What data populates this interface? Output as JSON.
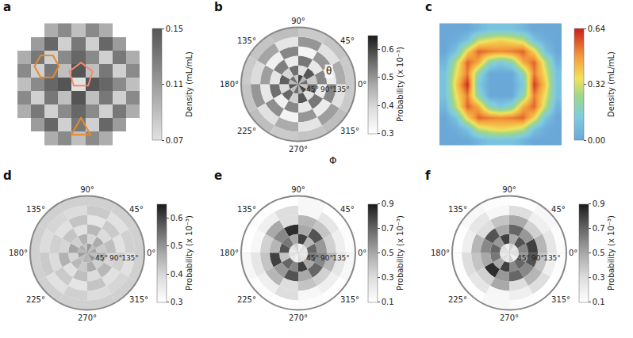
{
  "chart_data": [
    {
      "panel": "a",
      "type": "heatmap",
      "color": "gray",
      "tick_labels": false,
      "z": [
        [
          null,
          null,
          0.1,
          0.12,
          0.09,
          0.12,
          0.1,
          null,
          null
        ],
        [
          null,
          0.11,
          0.14,
          0.08,
          0.13,
          0.08,
          0.14,
          0.11,
          null
        ],
        [
          0.1,
          0.13,
          0.08,
          0.12,
          0.14,
          0.12,
          0.08,
          0.13,
          0.1
        ],
        [
          0.12,
          0.08,
          0.13,
          0.09,
          0.15,
          0.09,
          0.13,
          0.08,
          0.12
        ],
        [
          0.09,
          0.12,
          0.14,
          0.15,
          0.07,
          0.15,
          0.14,
          0.12,
          0.09
        ],
        [
          0.12,
          0.08,
          0.13,
          0.09,
          0.15,
          0.09,
          0.13,
          0.08,
          0.12
        ],
        [
          0.1,
          0.13,
          0.08,
          0.12,
          0.14,
          0.12,
          0.08,
          0.13,
          0.1
        ],
        [
          null,
          0.11,
          0.14,
          0.08,
          0.13,
          0.08,
          0.14,
          0.11,
          null
        ],
        [
          null,
          null,
          0.1,
          0.12,
          0.09,
          0.12,
          0.1,
          null,
          null
        ]
      ],
      "colorbar_title": "Density (mL/mL)",
      "zlim": [
        0.07,
        0.15
      ],
      "zticks": [
        0.07,
        0.11,
        0.15
      ]
    },
    {
      "panel": "b",
      "type": "polar_heatmap",
      "color": "black",
      "phi_bins": [
        0,
        30,
        60,
        90,
        120,
        150,
        180,
        210,
        240,
        270,
        300,
        330,
        360
      ],
      "theta_bins": [
        0,
        30,
        60,
        90,
        120,
        150,
        180
      ],
      "values": [
        [
          0.55,
          0.45,
          0.6,
          0.42,
          0.55,
          0.45,
          0.58,
          0.44,
          0.55,
          0.46,
          0.6,
          0.43
        ],
        [
          0.42,
          0.58,
          0.38,
          0.55,
          0.4,
          0.57,
          0.39,
          0.56,
          0.41,
          0.58,
          0.38,
          0.55
        ],
        [
          0.52,
          0.36,
          0.54,
          0.35,
          0.53,
          0.37,
          0.55,
          0.34,
          0.52,
          0.36,
          0.54,
          0.35
        ],
        [
          0.35,
          0.5,
          0.33,
          0.52,
          0.34,
          0.49,
          0.36,
          0.51,
          0.33,
          0.5,
          0.35,
          0.52
        ],
        [
          0.47,
          0.38,
          0.5,
          0.37,
          0.48,
          0.39,
          0.5,
          0.38,
          0.47,
          0.37,
          0.49,
          0.38
        ],
        [
          0.42,
          0.43,
          0.42,
          0.44,
          0.43,
          0.42,
          0.43,
          0.44,
          0.42,
          0.43,
          0.44,
          0.42
        ]
      ],
      "angular_ticks": [
        {
          "value": 0,
          "label": "0°"
        },
        {
          "value": 45,
          "label": "45°"
        },
        {
          "value": 90,
          "label": "90°"
        },
        {
          "value": 135,
          "label": "135°"
        },
        {
          "value": 180,
          "label": "180°"
        },
        {
          "value": 225,
          "label": "225°"
        },
        {
          "value": 270,
          "label": "270°"
        },
        {
          "value": 315,
          "label": "315°"
        }
      ],
      "rlim": [
        0,
        180
      ],
      "radial_ticks": [
        {
          "value": 45,
          "label": "45°"
        },
        {
          "value": 90,
          "label": "90°"
        },
        {
          "value": 135,
          "label": "135°"
        }
      ],
      "annotations": [
        "θ",
        "Φ"
      ],
      "colorbar_title": "Probability (x 10⁻³)",
      "zlim": [
        0.3,
        0.65
      ],
      "zticks": [
        0.3,
        0.4,
        0.5,
        0.6
      ]
    },
    {
      "panel": "c",
      "type": "heatmap",
      "color": "rainbow",
      "tick_labels": false,
      "z": [
        [
          0,
          0,
          0,
          0.05,
          0.1,
          0.1,
          0.1,
          0.05,
          0,
          0,
          0
        ],
        [
          0,
          0.02,
          0.1,
          0.3,
          0.35,
          0.38,
          0.35,
          0.3,
          0.1,
          0.02,
          0
        ],
        [
          0,
          0.1,
          0.38,
          0.55,
          0.52,
          0.5,
          0.52,
          0.55,
          0.38,
          0.1,
          0
        ],
        [
          0.05,
          0.3,
          0.55,
          0.45,
          0.2,
          0.12,
          0.2,
          0.45,
          0.55,
          0.3,
          0.05
        ],
        [
          0.1,
          0.35,
          0.52,
          0.2,
          0,
          0,
          0,
          0.2,
          0.52,
          0.35,
          0.1
        ],
        [
          0.1,
          0.4,
          0.62,
          0.12,
          0,
          0,
          0,
          0.12,
          0.6,
          0.4,
          0.1
        ],
        [
          0.1,
          0.35,
          0.52,
          0.2,
          0,
          0,
          0,
          0.2,
          0.52,
          0.35,
          0.1
        ],
        [
          0.05,
          0.3,
          0.55,
          0.45,
          0.2,
          0.12,
          0.2,
          0.45,
          0.55,
          0.3,
          0.05
        ],
        [
          0,
          0.1,
          0.38,
          0.55,
          0.52,
          0.5,
          0.52,
          0.55,
          0.38,
          0.1,
          0
        ],
        [
          0,
          0.02,
          0.1,
          0.3,
          0.35,
          0.38,
          0.35,
          0.3,
          0.1,
          0.02,
          0
        ],
        [
          0,
          0,
          0,
          0.05,
          0.1,
          0.1,
          0.1,
          0.05,
          0,
          0,
          0
        ]
      ],
      "colorbar_title": "Density (mL/mL)",
      "zlim": [
        0,
        0.64
      ],
      "zticks": [
        {
          "value": 0,
          "label": "0.00"
        },
        0.32,
        0.64
      ]
    },
    {
      "panel": "d",
      "type": "polar_heatmap",
      "color": "black",
      "phi_bins": [
        0,
        30,
        60,
        90,
        120,
        150,
        180,
        210,
        240,
        270,
        300,
        330,
        360
      ],
      "theta_bins": [
        0,
        30,
        60,
        90,
        120,
        150,
        180
      ],
      "values": [
        [
          0.48,
          0.44,
          0.5,
          0.43,
          0.47,
          0.45,
          0.49,
          0.44,
          0.46,
          0.45,
          0.5,
          0.44
        ],
        [
          0.42,
          0.47,
          0.4,
          0.46,
          0.41,
          0.48,
          0.4,
          0.45,
          0.42,
          0.47,
          0.41,
          0.46
        ],
        [
          0.44,
          0.39,
          0.45,
          0.38,
          0.43,
          0.4,
          0.46,
          0.38,
          0.44,
          0.39,
          0.45,
          0.4
        ],
        [
          0.38,
          0.42,
          0.37,
          0.43,
          0.38,
          0.41,
          0.39,
          0.42,
          0.37,
          0.43,
          0.38,
          0.41
        ],
        [
          0.41,
          0.38,
          0.42,
          0.39,
          0.4,
          0.39,
          0.42,
          0.38,
          0.41,
          0.39,
          0.4,
          0.38
        ],
        [
          0.41,
          0.41,
          0.41,
          0.41,
          0.41,
          0.41,
          0.41,
          0.41,
          0.41,
          0.41,
          0.41,
          0.41
        ]
      ],
      "angular_ticks": [
        {
          "value": 0,
          "label": "0°"
        },
        {
          "value": 45,
          "label": "45°"
        },
        {
          "value": 90,
          "label": "90°"
        },
        {
          "value": 135,
          "label": "135°"
        },
        {
          "value": 180,
          "label": "180°"
        },
        {
          "value": 225,
          "label": "225°"
        },
        {
          "value": 270,
          "label": "270°"
        },
        {
          "value": 315,
          "label": "315°"
        }
      ],
      "rlim": [
        0,
        180
      ],
      "radial_ticks": [
        {
          "value": 45,
          "label": "45°"
        },
        {
          "value": 90,
          "label": "90°"
        },
        {
          "value": 135,
          "label": "135°"
        }
      ],
      "colorbar_title": "Probability (x 10⁻³)",
      "zlim": [
        0.3,
        0.65
      ],
      "zticks": [
        0.3,
        0.4,
        0.5,
        0.6
      ]
    },
    {
      "panel": "e",
      "type": "polar_heatmap",
      "color": "black",
      "phi_bins": [
        0,
        30,
        60,
        90,
        120,
        150,
        180,
        210,
        240,
        270,
        300,
        330,
        360
      ],
      "theta_bins": [
        0,
        30,
        60,
        90,
        120,
        150,
        180
      ],
      "values": [
        [
          0.25,
          0.3,
          0.2,
          0.35,
          0.28,
          0.22,
          0.3,
          0.25,
          0.2,
          0.32,
          0.27,
          0.24
        ],
        [
          0.7,
          0.45,
          0.8,
          0.5,
          0.65,
          0.75,
          0.4,
          0.7,
          0.6,
          0.8,
          0.5,
          0.65
        ],
        [
          0.55,
          0.75,
          0.5,
          0.85,
          0.6,
          0.45,
          0.8,
          0.55,
          0.75,
          0.5,
          0.7,
          0.6
        ],
        [
          0.35,
          0.4,
          0.45,
          0.3,
          0.5,
          0.35,
          0.4,
          0.45,
          0.3,
          0.4,
          0.35,
          0.45
        ],
        [
          0.2,
          0.25,
          0.15,
          0.3,
          0.2,
          0.15,
          0.25,
          0.2,
          0.3,
          0.15,
          0.2,
          0.25
        ],
        [
          0.12,
          0.1,
          0.15,
          0.1,
          0.12,
          0.1,
          0.15,
          0.12,
          0.1,
          0.12,
          0.1,
          0.15
        ]
      ],
      "angular_ticks": [
        {
          "value": 0,
          "label": "0°"
        },
        {
          "value": 45,
          "label": "45°"
        },
        {
          "value": 90,
          "label": "90°"
        },
        {
          "value": 135,
          "label": "135°"
        },
        {
          "value": 180,
          "label": "180°"
        },
        {
          "value": 225,
          "label": "225°"
        },
        {
          "value": 270,
          "label": "270°"
        },
        {
          "value": 315,
          "label": "315°"
        }
      ],
      "rlim": [
        0,
        180
      ],
      "radial_ticks": [
        {
          "value": 45,
          "label": "45°"
        },
        {
          "value": 90,
          "label": "90°"
        },
        {
          "value": 135,
          "label": "135°"
        }
      ],
      "colorbar_title": "Probability (x 10⁻³)",
      "zlim": [
        0.1,
        0.9
      ],
      "zticks": [
        0.1,
        0.3,
        0.5,
        0.7,
        0.9
      ]
    },
    {
      "panel": "f",
      "type": "polar_heatmap",
      "color": "black",
      "phi_bins": [
        0,
        30,
        60,
        90,
        120,
        150,
        180,
        210,
        240,
        270,
        300,
        330,
        360
      ],
      "theta_bins": [
        0,
        30,
        60,
        90,
        120,
        150,
        180
      ],
      "values": [
        [
          0.3,
          0.25,
          0.35,
          0.2,
          0.3,
          0.28,
          0.22,
          0.3,
          0.25,
          0.35,
          0.2,
          0.28
        ],
        [
          0.6,
          0.75,
          0.5,
          0.8,
          0.55,
          0.7,
          0.65,
          0.5,
          0.8,
          0.6,
          0.7,
          0.55
        ],
        [
          0.8,
          0.55,
          0.7,
          0.5,
          0.75,
          0.6,
          0.5,
          0.85,
          0.55,
          0.7,
          0.6,
          0.75
        ],
        [
          0.45,
          0.35,
          0.5,
          0.4,
          0.3,
          0.45,
          0.4,
          0.35,
          0.5,
          0.3,
          0.45,
          0.4
        ],
        [
          0.25,
          0.2,
          0.3,
          0.15,
          0.25,
          0.2,
          0.3,
          0.25,
          0.15,
          0.2,
          0.3,
          0.2
        ],
        [
          0.12,
          0.15,
          0.1,
          0.12,
          0.15,
          0.1,
          0.12,
          0.1,
          0.15,
          0.12,
          0.1,
          0.12
        ]
      ],
      "angular_ticks": [
        {
          "value": 0,
          "label": "0°"
        },
        {
          "value": 45,
          "label": "45°"
        },
        {
          "value": 90,
          "label": "90°"
        },
        {
          "value": 135,
          "label": "135°"
        },
        {
          "value": 180,
          "label": "180°"
        },
        {
          "value": 225,
          "label": "225°"
        },
        {
          "value": 270,
          "label": "270°"
        },
        {
          "value": 315,
          "label": "315°"
        }
      ],
      "rlim": [
        0,
        180
      ],
      "radial_ticks": [
        {
          "value": 45,
          "label": "45°"
        },
        {
          "value": 90,
          "label": "90°"
        },
        {
          "value": 135,
          "label": "135°"
        }
      ],
      "colorbar_title": "Probability (x 10⁻³)",
      "zlim": [
        0.1,
        0.9
      ],
      "zticks": [
        0.1,
        0.3,
        0.5,
        0.7,
        0.9
      ]
    }
  ]
}
